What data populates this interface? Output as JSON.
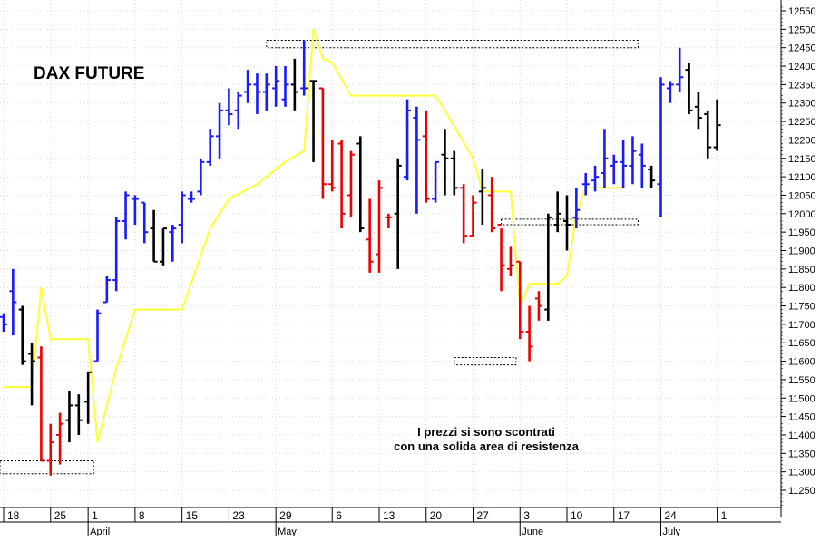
{
  "chart_data": {
    "type": "ohlc",
    "title": "DAX FUTURE",
    "annotation": [
      "I prezzi si sono scontrati",
      "con una solida area di resistenza"
    ],
    "y_axis": {
      "min": 11200,
      "max": 12570,
      "ticks": [
        11250,
        11300,
        11350,
        11400,
        11450,
        11500,
        11550,
        11600,
        11650,
        11700,
        11750,
        11800,
        11850,
        11900,
        11950,
        12000,
        12050,
        12100,
        12150,
        12200,
        12250,
        12300,
        12350,
        12400,
        12450,
        12500,
        12550
      ]
    },
    "x_axis": {
      "day_labels": [
        "18",
        "25",
        "1",
        "8",
        "15",
        "23",
        "29",
        "6",
        "13",
        "20",
        "27",
        "3",
        "10",
        "17",
        "24",
        "1"
      ],
      "month_labels": [
        "April",
        "May",
        "June",
        "July"
      ]
    },
    "colors": {
      "up": "#1a1aff",
      "down": "#ee0000",
      "neutral": "#000000",
      "line": "#ffff33",
      "grid": "#d8d8d8"
    },
    "bars": [
      {
        "o": 11720,
        "h": 11730,
        "l": 11680,
        "c": 11700,
        "color": "up"
      },
      {
        "o": 11790,
        "h": 11850,
        "l": 11670,
        "c": 11760,
        "color": "up"
      },
      {
        "o": 11740,
        "h": 11750,
        "l": 11590,
        "c": 11600,
        "color": "neutral"
      },
      {
        "o": 11620,
        "h": 11650,
        "l": 11480,
        "c": 11600,
        "color": "neutral"
      },
      {
        "o": 11610,
        "h": 11640,
        "l": 11330,
        "c": 11330,
        "color": "down"
      },
      {
        "o": 11330,
        "h": 11430,
        "l": 11290,
        "c": 11380,
        "color": "down"
      },
      {
        "o": 11400,
        "h": 11460,
        "l": 11320,
        "c": 11430,
        "color": "down"
      },
      {
        "o": 11440,
        "h": 11520,
        "l": 11380,
        "c": 11480,
        "color": "neutral"
      },
      {
        "o": 11480,
        "h": 11510,
        "l": 11400,
        "c": 11440,
        "color": "neutral"
      },
      {
        "o": 11490,
        "h": 11570,
        "l": 11430,
        "c": 11570,
        "color": "neutral"
      },
      {
        "o": 11600,
        "h": 11740,
        "l": 11600,
        "c": 11730,
        "color": "up"
      },
      {
        "o": 11760,
        "h": 11830,
        "l": 11760,
        "c": 11820,
        "color": "up"
      },
      {
        "o": 11820,
        "h": 11990,
        "l": 11790,
        "c": 11980,
        "color": "up"
      },
      {
        "o": 11980,
        "h": 12060,
        "l": 11930,
        "c": 12050,
        "color": "up"
      },
      {
        "o": 12040,
        "h": 12050,
        "l": 11970,
        "c": 12040,
        "color": "up"
      },
      {
        "o": 12030,
        "h": 12030,
        "l": 11920,
        "c": 11950,
        "color": "up"
      },
      {
        "o": 11960,
        "h": 12010,
        "l": 11870,
        "c": 11870,
        "color": "neutral"
      },
      {
        "o": 11870,
        "h": 11960,
        "l": 11860,
        "c": 11960,
        "color": "neutral"
      },
      {
        "o": 11950,
        "h": 11970,
        "l": 11870,
        "c": 11960,
        "color": "up"
      },
      {
        "o": 11970,
        "h": 12060,
        "l": 11920,
        "c": 12050,
        "color": "up"
      },
      {
        "o": 12040,
        "h": 12060,
        "l": 12030,
        "c": 12040,
        "color": "up"
      },
      {
        "o": 12060,
        "h": 12150,
        "l": 12050,
        "c": 12140,
        "color": "up"
      },
      {
        "o": 12140,
        "h": 12230,
        "l": 12130,
        "c": 12210,
        "color": "up"
      },
      {
        "o": 12210,
        "h": 12300,
        "l": 12150,
        "c": 12280,
        "color": "up"
      },
      {
        "o": 12280,
        "h": 12340,
        "l": 12240,
        "c": 12270,
        "color": "up"
      },
      {
        "o": 12280,
        "h": 12330,
        "l": 12230,
        "c": 12320,
        "color": "up"
      },
      {
        "o": 12330,
        "h": 12390,
        "l": 12300,
        "c": 12350,
        "color": "up"
      },
      {
        "o": 12350,
        "h": 12380,
        "l": 12270,
        "c": 12330,
        "color": "up"
      },
      {
        "o": 12330,
        "h": 12380,
        "l": 12280,
        "c": 12350,
        "color": "up"
      },
      {
        "o": 12340,
        "h": 12400,
        "l": 12290,
        "c": 12360,
        "color": "up"
      },
      {
        "o": 12310,
        "h": 12400,
        "l": 12290,
        "c": 12350,
        "color": "up"
      },
      {
        "o": 12350,
        "h": 12420,
        "l": 12280,
        "c": 12330,
        "color": "neutral"
      },
      {
        "o": 12340,
        "h": 12470,
        "l": 12320,
        "c": 12340,
        "color": "up"
      },
      {
        "o": 12360,
        "h": 12360,
        "l": 12140,
        "c": 12360,
        "color": "neutral"
      },
      {
        "o": 12340,
        "h": 12340,
        "l": 12040,
        "c": 12080,
        "color": "down"
      },
      {
        "o": 12080,
        "h": 12200,
        "l": 12060,
        "c": 12070,
        "color": "down"
      },
      {
        "o": 12190,
        "h": 12200,
        "l": 11960,
        "c": 12000,
        "color": "down"
      },
      {
        "o": 12050,
        "h": 12170,
        "l": 11990,
        "c": 12160,
        "color": "down"
      },
      {
        "o": 12190,
        "h": 12210,
        "l": 11950,
        "c": 11960,
        "color": "neutral"
      },
      {
        "o": 11930,
        "h": 12040,
        "l": 11840,
        "c": 11870,
        "color": "down"
      },
      {
        "o": 11890,
        "h": 12090,
        "l": 11840,
        "c": 12070,
        "color": "down"
      },
      {
        "o": 11990,
        "h": 12000,
        "l": 11960,
        "c": 11990,
        "color": "down"
      },
      {
        "o": 12000,
        "h": 12150,
        "l": 11850,
        "c": 12130,
        "color": "neutral"
      },
      {
        "o": 12100,
        "h": 12310,
        "l": 12090,
        "c": 12280,
        "color": "up"
      },
      {
        "o": 12260,
        "h": 12290,
        "l": 12000,
        "c": 12200,
        "color": "up"
      },
      {
        "o": 12210,
        "h": 12280,
        "l": 12030,
        "c": 12040,
        "color": "down"
      },
      {
        "o": 12040,
        "h": 12140,
        "l": 12030,
        "c": 12140,
        "color": "up"
      },
      {
        "o": 12160,
        "h": 12230,
        "l": 12050,
        "c": 12150,
        "color": "neutral"
      },
      {
        "o": 12150,
        "h": 12170,
        "l": 12050,
        "c": 12070,
        "color": "neutral"
      },
      {
        "o": 12070,
        "h": 12080,
        "l": 11920,
        "c": 11940,
        "color": "down"
      },
      {
        "o": 11940,
        "h": 12050,
        "l": 11940,
        "c": 12030,
        "color": "down"
      },
      {
        "o": 12060,
        "h": 12120,
        "l": 11970,
        "c": 12070,
        "color": "neutral"
      },
      {
        "o": 12050,
        "h": 12100,
        "l": 11950,
        "c": 11960,
        "color": "down"
      },
      {
        "o": 11970,
        "h": 11960,
        "l": 11790,
        "c": 11860,
        "color": "down"
      },
      {
        "o": 11850,
        "h": 11910,
        "l": 11830,
        "c": 11860,
        "color": "down"
      },
      {
        "o": 11870,
        "h": 11870,
        "l": 11660,
        "c": 11680,
        "color": "down"
      },
      {
        "o": 11680,
        "h": 11750,
        "l": 11600,
        "c": 11640,
        "color": "down"
      },
      {
        "o": 11770,
        "h": 11790,
        "l": 11710,
        "c": 11750,
        "color": "down"
      },
      {
        "o": 11740,
        "h": 12000,
        "l": 11710,
        "c": 11990,
        "color": "neutral"
      },
      {
        "o": 11970,
        "h": 12060,
        "l": 11950,
        "c": 12000,
        "color": "neutral"
      },
      {
        "o": 11980,
        "h": 12050,
        "l": 11900,
        "c": 11970,
        "color": "neutral"
      },
      {
        "o": 11990,
        "h": 12070,
        "l": 11960,
        "c": 12010,
        "color": "up"
      },
      {
        "o": 12080,
        "h": 12110,
        "l": 12050,
        "c": 12080,
        "color": "up"
      },
      {
        "o": 12090,
        "h": 12130,
        "l": 12060,
        "c": 12100,
        "color": "up"
      },
      {
        "o": 12110,
        "h": 12230,
        "l": 12070,
        "c": 12150,
        "color": "up"
      },
      {
        "o": 12130,
        "h": 12160,
        "l": 12080,
        "c": 12140,
        "color": "up"
      },
      {
        "o": 12140,
        "h": 12200,
        "l": 12070,
        "c": 12130,
        "color": "up"
      },
      {
        "o": 12130,
        "h": 12210,
        "l": 12080,
        "c": 12170,
        "color": "up"
      },
      {
        "o": 12160,
        "h": 12190,
        "l": 12070,
        "c": 12130,
        "color": "up"
      },
      {
        "o": 12120,
        "h": 12130,
        "l": 12070,
        "c": 12090,
        "color": "neutral"
      },
      {
        "o": 12080,
        "h": 12370,
        "l": 11990,
        "c": 12350,
        "color": "up"
      },
      {
        "o": 12340,
        "h": 12360,
        "l": 12300,
        "c": 12350,
        "color": "up"
      },
      {
        "o": 12350,
        "h": 12450,
        "l": 12330,
        "c": 12370,
        "color": "up"
      },
      {
        "o": 12390,
        "h": 12410,
        "l": 12270,
        "c": 12280,
        "color": "neutral"
      },
      {
        "o": 12290,
        "h": 12330,
        "l": 12230,
        "c": 12260,
        "color": "neutral"
      },
      {
        "o": 12270,
        "h": 12280,
        "l": 12150,
        "c": 12180,
        "color": "neutral"
      },
      {
        "o": 12180,
        "h": 12310,
        "l": 12170,
        "c": 12240,
        "color": "neutral"
      }
    ],
    "line": [
      {
        "d": 0,
        "v": 11530
      },
      {
        "d": 3,
        "v": 11530
      },
      {
        "d": 4,
        "v": 11800
      },
      {
        "d": 5,
        "v": 11660
      },
      {
        "d": 9,
        "v": 11660
      },
      {
        "d": 10,
        "v": 11380
      },
      {
        "d": 12,
        "v": 11580
      },
      {
        "d": 13,
        "v": 11660
      },
      {
        "d": 14,
        "v": 11740
      },
      {
        "d": 19,
        "v": 11740
      },
      {
        "d": 22,
        "v": 11960
      },
      {
        "d": 24,
        "v": 12040
      },
      {
        "d": 27,
        "v": 12080
      },
      {
        "d": 30,
        "v": 12140
      },
      {
        "d": 32,
        "v": 12170
      },
      {
        "d": 33,
        "v": 12500
      },
      {
        "d": 34,
        "v": 12420
      },
      {
        "d": 35,
        "v": 12410
      },
      {
        "d": 37,
        "v": 12320
      },
      {
        "d": 46,
        "v": 12320
      },
      {
        "d": 47,
        "v": 12280
      },
      {
        "d": 50,
        "v": 12150
      },
      {
        "d": 51,
        "v": 12060
      },
      {
        "d": 54,
        "v": 12060
      },
      {
        "d": 55,
        "v": 11750
      },
      {
        "d": 56,
        "v": 11810
      },
      {
        "d": 59,
        "v": 11810
      },
      {
        "d": 60,
        "v": 11830
      },
      {
        "d": 61,
        "v": 12000
      },
      {
        "d": 62,
        "v": 12070
      },
      {
        "d": 66,
        "v": 12070
      }
    ],
    "zones": [
      {
        "d1": -1,
        "d2": 9,
        "lo": 11295,
        "hi": 11330
      },
      {
        "d1": 28,
        "d2": 67,
        "lo": 12450,
        "hi": 12470
      },
      {
        "d1": 53,
        "d2": 67,
        "lo": 11970,
        "hi": 11985
      },
      {
        "d1": 48,
        "d2": 54,
        "lo": 11590,
        "hi": 11610
      }
    ],
    "tick_days": [
      0,
      5,
      9,
      14,
      19,
      24,
      29,
      35,
      40,
      45,
      50,
      55,
      60,
      65,
      70,
      76
    ],
    "month_days": [
      9,
      29,
      55,
      70
    ]
  }
}
